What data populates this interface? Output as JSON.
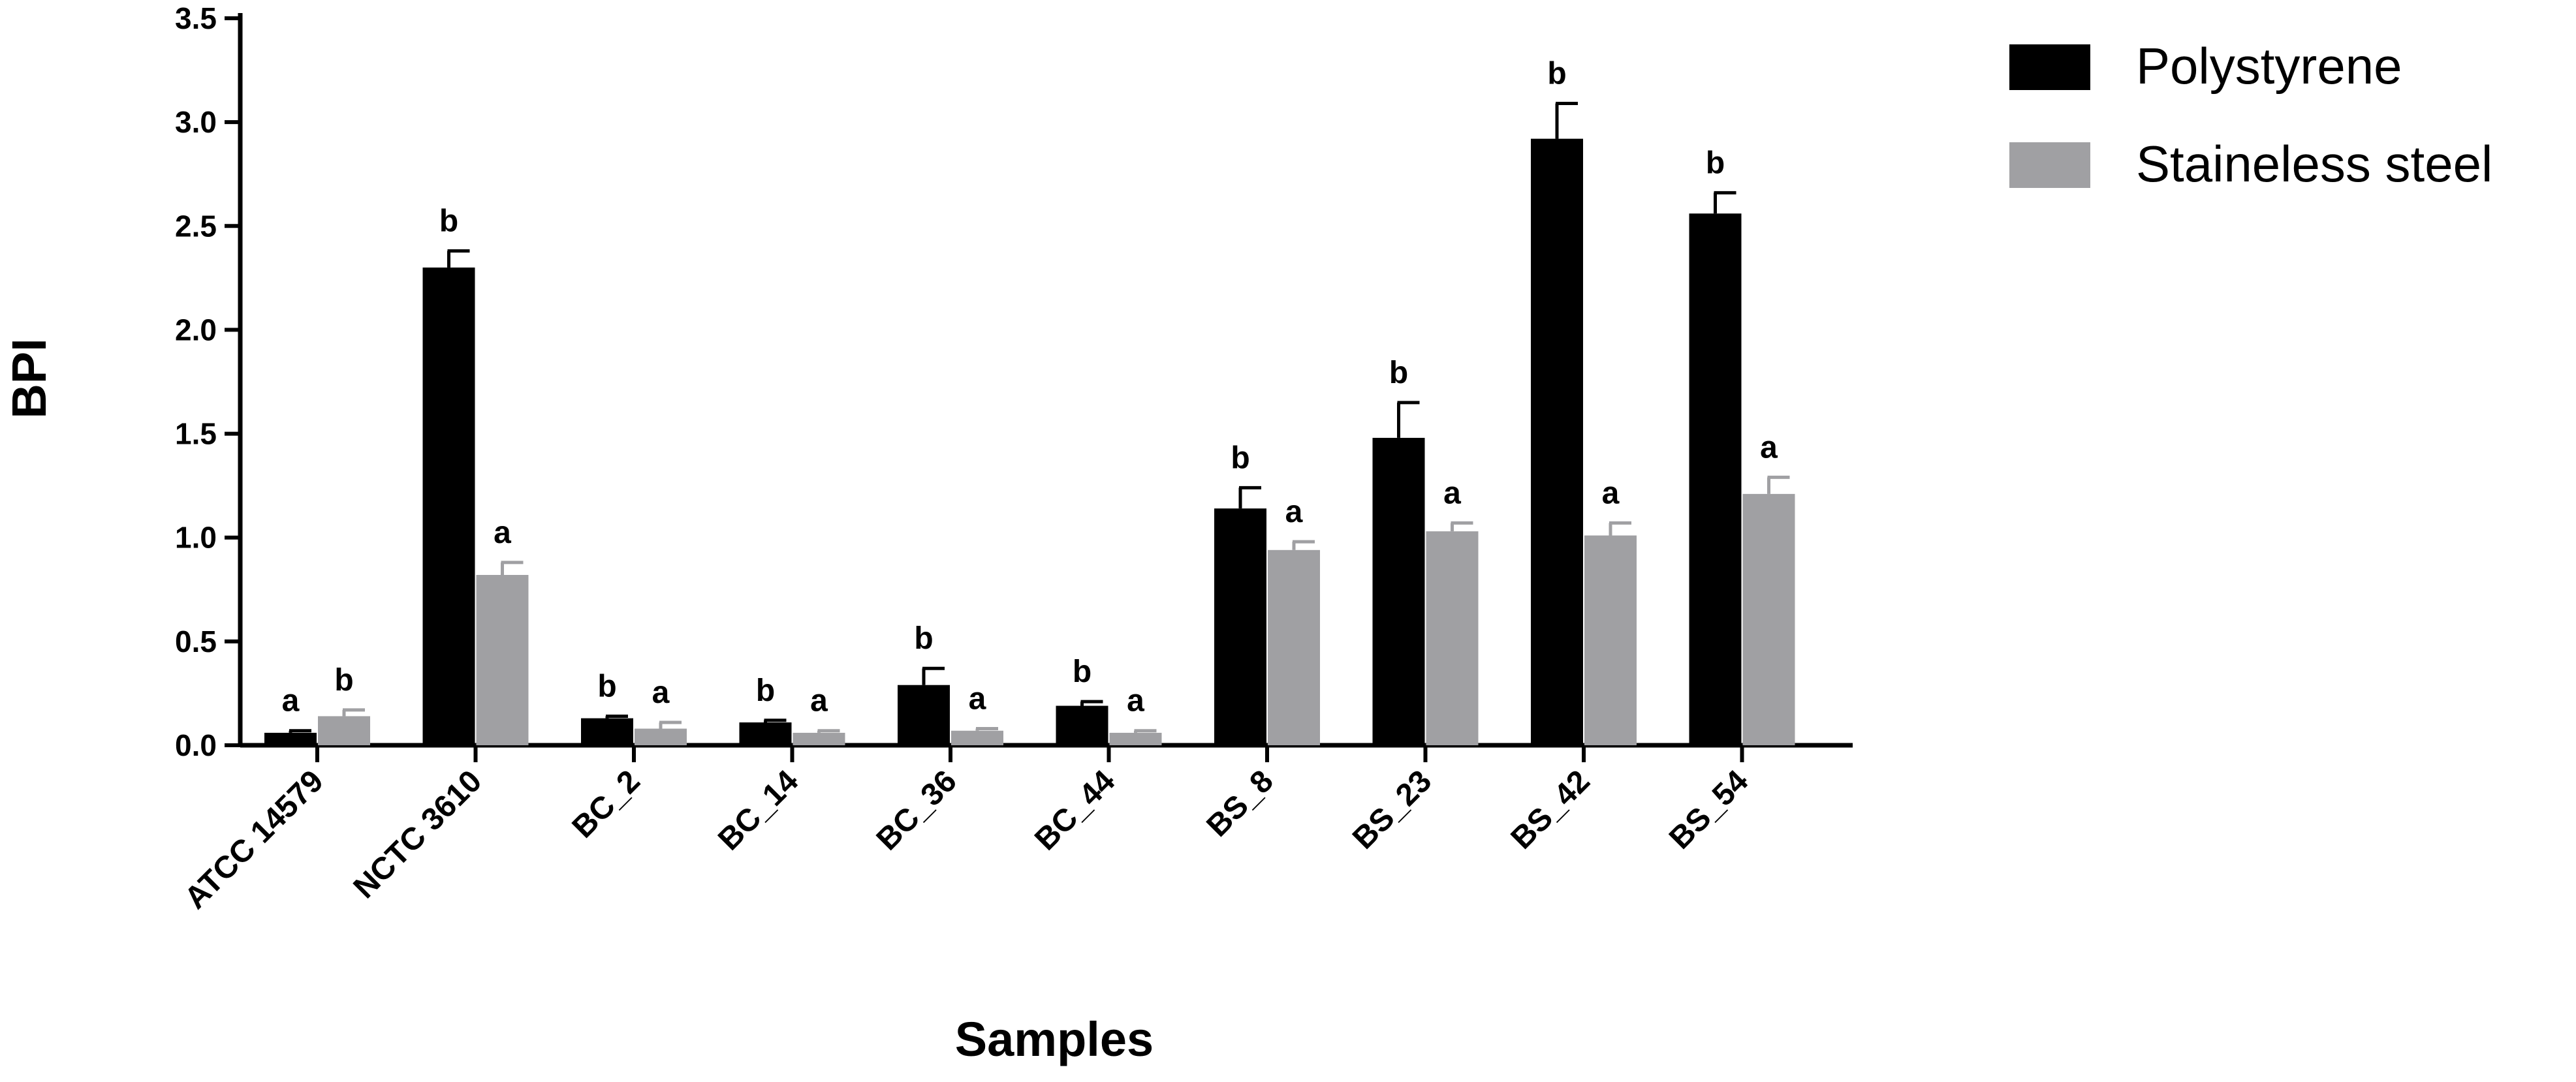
{
  "chart_data": {
    "type": "bar",
    "xlabel": "Samples",
    "ylabel": "BPI",
    "ylim": [
      0,
      3.5
    ],
    "yticks": [
      "0.0",
      "0.5",
      "1.0",
      "1.5",
      "2.0",
      "2.5",
      "3.0",
      "3.5"
    ],
    "grid": false,
    "legend_position": "top-right",
    "categories": [
      "ATCC 14579",
      "NCTC 3610",
      "BC_2",
      "BC_14",
      "BC_36",
      "BC_44",
      "BS_8",
      "BS_23",
      "BS_42",
      "BS_54"
    ],
    "series": [
      {
        "name": "Polystyrene",
        "color": "#000000",
        "values": [
          0.06,
          2.3,
          0.13,
          0.11,
          0.29,
          0.19,
          1.14,
          1.48,
          2.92,
          2.56
        ],
        "errors": [
          0.01,
          0.08,
          0.01,
          0.01,
          0.08,
          0.02,
          0.1,
          0.17,
          0.17,
          0.1
        ],
        "letters": [
          "a",
          "b",
          "b",
          "b",
          "b",
          "b",
          "b",
          "b",
          "b",
          "b"
        ]
      },
      {
        "name": "Staineless steel",
        "color": "#a0a0a3",
        "values": [
          0.14,
          0.82,
          0.08,
          0.06,
          0.07,
          0.06,
          0.94,
          1.03,
          1.01,
          1.21
        ],
        "errors": [
          0.03,
          0.06,
          0.03,
          0.01,
          0.01,
          0.01,
          0.04,
          0.04,
          0.06,
          0.08
        ],
        "letters": [
          "b",
          "a",
          "a",
          "a",
          "a",
          "a",
          "a",
          "a",
          "a",
          "a"
        ]
      }
    ]
  }
}
